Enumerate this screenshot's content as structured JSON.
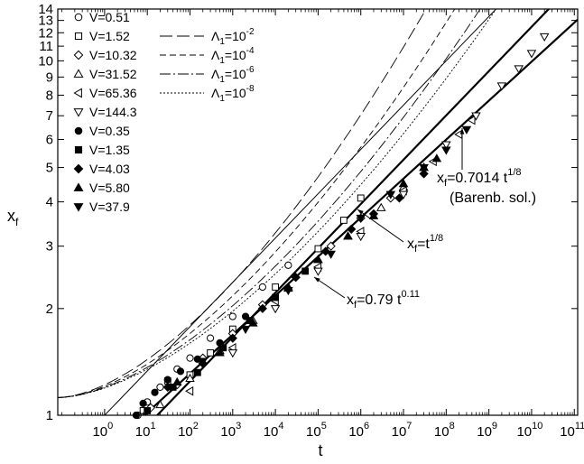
{
  "chart_data": {
    "type": "scatter",
    "xlabel": "t",
    "ylabel": "x",
    "ylabel_sub": "f",
    "x_scale": "log",
    "y_scale": "log",
    "xlim": [
      0.08,
      120000000000.0
    ],
    "ylim": [
      1,
      14
    ],
    "x_ticks": [
      {
        "value": 1,
        "base": "10",
        "exp": "0"
      },
      {
        "value": 10,
        "base": "10",
        "exp": "1"
      },
      {
        "value": 100,
        "base": "10",
        "exp": "2"
      },
      {
        "value": 1000,
        "base": "10",
        "exp": "3"
      },
      {
        "value": 10000,
        "base": "10",
        "exp": "4"
      },
      {
        "value": 100000,
        "base": "10",
        "exp": "5"
      },
      {
        "value": 1000000,
        "base": "10",
        "exp": "6"
      },
      {
        "value": 10000000,
        "base": "10",
        "exp": "7"
      },
      {
        "value": 100000000,
        "base": "10",
        "exp": "8"
      },
      {
        "value": 1000000000,
        "base": "10",
        "exp": "9"
      },
      {
        "value": 10000000000,
        "base": "10",
        "exp": "10"
      },
      {
        "value": 100000000000,
        "base": "10",
        "exp": "11"
      }
    ],
    "y_ticks": [
      1,
      2,
      3,
      4,
      5,
      6,
      7,
      8,
      9,
      10,
      11,
      12,
      13,
      14
    ],
    "grid": false,
    "legend_left": [
      {
        "label": "V=0.51",
        "marker": "circle-open"
      },
      {
        "label": "V=1.52",
        "marker": "square-open"
      },
      {
        "label": "V=10.32",
        "marker": "diamond-open"
      },
      {
        "label": "V=31.52",
        "marker": "triangle-up-open"
      },
      {
        "label": "V=65.36",
        "marker": "triangle-left-open"
      },
      {
        "label": "V=144.3",
        "marker": "triangle-down-open"
      },
      {
        "label": "V=0.35",
        "marker": "circle-filled"
      },
      {
        "label": "V=1.35",
        "marker": "square-filled"
      },
      {
        "label": "V=4.03",
        "marker": "diamond-filled"
      },
      {
        "label": "V=5.80",
        "marker": "triangle-up-filled"
      },
      {
        "label": "V=37.9",
        "marker": "triangle-down-filled"
      }
    ],
    "legend_right": [
      {
        "label_base": "Λ",
        "label_sub": "1",
        "label_mid": "=10",
        "label_exp": "-2",
        "dash": "14,5",
        "x_end": 40000000.0
      },
      {
        "label_base": "Λ",
        "label_sub": "1",
        "label_mid": "=10",
        "label_exp": "-4",
        "dash": "7,4",
        "x_end": 190000000.0
      },
      {
        "label_base": "Λ",
        "label_sub": "1",
        "label_mid": "=10",
        "label_exp": "-6",
        "dash": "12,3,2,3",
        "x_end": 760000000.0
      },
      {
        "label_base": "Λ",
        "label_sub": "1",
        "label_mid": "=10",
        "label_exp": "-8",
        "dash": "2,2",
        "x_end": 1800000000.0
      }
    ],
    "theory_lines": [
      {
        "name": "x_f=t^(1/8)",
        "coef": 1.0,
        "exp": 0.125,
        "width": 1.0
      },
      {
        "name": "x_f=0.7014 t^(1/8)",
        "coef": 0.7014,
        "exp": 0.125,
        "width": 2.2
      },
      {
        "name": "x_f=0.79 t^0.11",
        "coef": 0.79,
        "exp": 0.11,
        "width": 2.2
      }
    ],
    "series": [
      {
        "name": "V=0.51",
        "marker": "circle-open",
        "points": [
          [
            6,
            1.0
          ],
          [
            10,
            1.09
          ],
          [
            20,
            1.2
          ],
          [
            50,
            1.35
          ],
          [
            100,
            1.45
          ],
          [
            300,
            1.65
          ],
          [
            1000,
            1.9
          ],
          [
            5000,
            2.3
          ],
          [
            20000,
            2.65
          ]
        ]
      },
      {
        "name": "V=1.52",
        "marker": "square-open",
        "points": [
          [
            8,
            1.03
          ],
          [
            30,
            1.25
          ],
          [
            100,
            1.3
          ],
          [
            300,
            1.5
          ],
          [
            1000,
            1.75
          ],
          [
            10000,
            2.3
          ],
          [
            100000,
            2.95
          ],
          [
            400000,
            3.55
          ],
          [
            1000000,
            4.1
          ]
        ]
      },
      {
        "name": "V=10.32",
        "marker": "diamond-open",
        "points": [
          [
            12,
            1.05
          ],
          [
            50,
            1.22
          ],
          [
            200,
            1.45
          ],
          [
            1000,
            1.7
          ],
          [
            5000,
            2.05
          ],
          [
            30000,
            2.45
          ],
          [
            200000,
            3.0
          ],
          [
            1000000,
            3.6
          ],
          [
            5000000,
            4.1
          ]
        ]
      },
      {
        "name": "V=31.52",
        "marker": "triangle-up-open",
        "points": [
          [
            20,
            1.07
          ],
          [
            100,
            1.27
          ],
          [
            500,
            1.52
          ],
          [
            3000,
            1.85
          ],
          [
            20000,
            2.28
          ],
          [
            100000,
            2.75
          ],
          [
            500000,
            3.2
          ],
          [
            3000000,
            3.85
          ],
          [
            10000000,
            4.4
          ],
          [
            30000000,
            5.0
          ]
        ]
      },
      {
        "name": "V=65.36",
        "marker": "triangle-left-open",
        "points": [
          [
            100,
            1.17
          ],
          [
            1000,
            1.55
          ],
          [
            10000,
            2.1
          ],
          [
            100000,
            2.62
          ],
          [
            1000000,
            3.3
          ],
          [
            10000000,
            4.3
          ],
          [
            50000000,
            5.2
          ],
          [
            200000000,
            6.2
          ],
          [
            400000000,
            6.8
          ]
        ]
      },
      {
        "name": "V=144.3",
        "marker": "triangle-down-open",
        "points": [
          [
            1000,
            1.5
          ],
          [
            10000,
            2.0
          ],
          [
            100000,
            2.55
          ],
          [
            1000000,
            3.2
          ],
          [
            10000000,
            4.2
          ],
          [
            100000000,
            5.8
          ],
          [
            500000000,
            7.0
          ],
          [
            2000000000,
            8.5
          ],
          [
            5000000000,
            9.5
          ],
          [
            10000000000,
            10.5
          ],
          [
            20000000000,
            11.7
          ]
        ]
      },
      {
        "name": "V=0.35",
        "marker": "circle-filled",
        "points": [
          [
            5.5,
            1.0
          ],
          [
            8,
            1.08
          ],
          [
            15,
            1.16
          ],
          [
            30,
            1.26
          ],
          [
            60,
            1.33
          ],
          [
            150,
            1.44
          ],
          [
            500,
            1.6
          ],
          [
            2000,
            1.9
          ]
        ]
      },
      {
        "name": "V=1.35",
        "marker": "square-filled",
        "points": [
          [
            10,
            1.03
          ],
          [
            40,
            1.2
          ],
          [
            150,
            1.32
          ],
          [
            600,
            1.55
          ],
          [
            2500,
            1.85
          ],
          [
            10000,
            2.15
          ],
          [
            50000,
            2.55
          ]
        ]
      },
      {
        "name": "V=4.03",
        "marker": "diamond-filled",
        "points": [
          [
            30,
            1.2
          ],
          [
            200,
            1.4
          ],
          [
            1000,
            1.65
          ],
          [
            5000,
            2.0
          ],
          [
            30000,
            2.45
          ],
          [
            150000,
            2.9
          ],
          [
            600000,
            3.35
          ],
          [
            2000000,
            3.7
          ],
          [
            8000000,
            4.1
          ],
          [
            30000000,
            4.8
          ]
        ]
      },
      {
        "name": "V=5.80",
        "marker": "triangle-up-filled",
        "points": [
          [
            50,
            1.24
          ],
          [
            500,
            1.5
          ],
          [
            3000,
            1.82
          ],
          [
            20000,
            2.3
          ],
          [
            100000,
            2.75
          ],
          [
            500000,
            3.2
          ],
          [
            2000000,
            3.65
          ],
          [
            10000000,
            4.5
          ],
          [
            30000000,
            5.0
          ],
          [
            60000000,
            5.3
          ]
        ]
      },
      {
        "name": "V=37.9",
        "marker": "triangle-down-filled",
        "points": [
          [
            200,
            1.42
          ],
          [
            2000,
            1.75
          ],
          [
            20000,
            2.25
          ],
          [
            200000,
            2.85
          ],
          [
            1000000,
            3.6
          ],
          [
            5000000,
            4.2
          ],
          [
            30000000,
            5.0
          ],
          [
            100000000,
            5.6
          ],
          [
            300000000,
            6.4
          ]
        ]
      }
    ],
    "annotations": [
      {
        "base": "x",
        "sub": "f",
        "rest": "=0.7014 t",
        "sup": "1/8",
        "line2": "(Barenb. sol.)"
      },
      {
        "base": "x",
        "sub": "f",
        "rest": "=t",
        "sup": "1/8"
      },
      {
        "base": "x",
        "sub": "f",
        "rest": "=0.79 t",
        "sup": "0.11"
      }
    ]
  }
}
